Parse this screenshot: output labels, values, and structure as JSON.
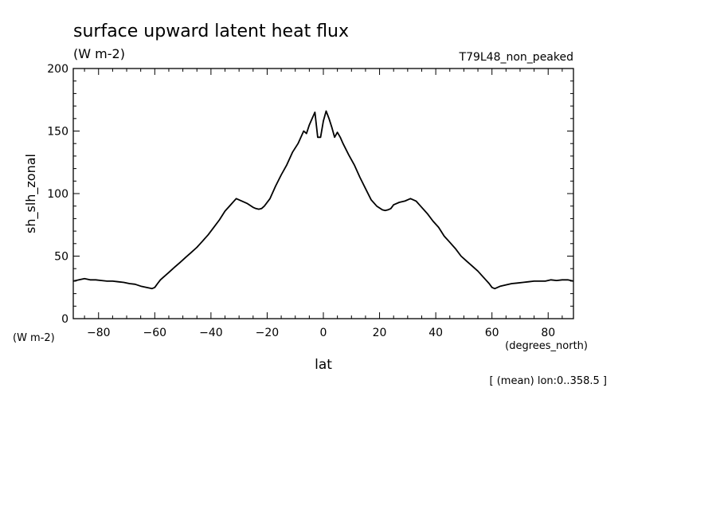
{
  "chart_data": {
    "type": "line",
    "title": "surface upward latent heat flux",
    "subtitle": "(W m-2)",
    "run_label": "T79L48_non_peaked",
    "xlabel": "lat",
    "x_units": "(degrees_north)",
    "ylabel": "sh_slh_zonal",
    "y_units": "(W m-2)",
    "footnote": "[ (mean) lon:0..358.5 ]",
    "xlim": [
      -89,
      89
    ],
    "ylim": [
      0,
      200
    ],
    "x_ticks": [
      -80,
      -60,
      -40,
      -20,
      0,
      20,
      40,
      60,
      80
    ],
    "y_ticks": [
      0,
      50,
      100,
      150,
      200
    ],
    "line_color": "#000000",
    "series": [
      {
        "x": [
          -89,
          -87,
          -85,
          -83,
          -81,
          -79,
          -77,
          -75,
          -73,
          -71,
          -69,
          -67,
          -65,
          -63,
          -61,
          -60,
          -59,
          -58,
          -57,
          -55,
          -53,
          -51,
          -49,
          -47,
          -45,
          -43,
          -41,
          -39,
          -37,
          -35,
          -33,
          -31,
          -29,
          -27,
          -25,
          -24,
          -23,
          -22,
          -21,
          -19,
          -17,
          -15,
          -13,
          -11,
          -9,
          -7,
          -6,
          -5,
          -4,
          -3,
          -2,
          -1,
          0,
          1,
          2,
          3,
          4,
          5,
          6,
          7,
          9,
          11,
          13,
          15,
          17,
          19,
          21,
          22,
          23,
          24,
          25,
          27,
          29,
          31,
          33,
          35,
          37,
          39,
          41,
          43,
          45,
          47,
          49,
          51,
          53,
          55,
          57,
          59,
          60,
          61,
          63,
          65,
          67,
          69,
          71,
          73,
          75,
          77,
          79,
          81,
          83,
          85,
          87,
          89
        ],
        "y": [
          30,
          31,
          32,
          31,
          31,
          30.5,
          30,
          30,
          29.5,
          29,
          28,
          27.5,
          26,
          25,
          24,
          25,
          28,
          31,
          33,
          37,
          41,
          45,
          49,
          53,
          57,
          62,
          67,
          73,
          79,
          86,
          91,
          96,
          94,
          92,
          89,
          88,
          87.5,
          88,
          90,
          96,
          106,
          115,
          123,
          133,
          140,
          150,
          148,
          155,
          160,
          165,
          145,
          145,
          158,
          166,
          160,
          153,
          145,
          149,
          145,
          140,
          131,
          123,
          113,
          104,
          95,
          90,
          87,
          86.5,
          87,
          88,
          91,
          93,
          94,
          96,
          94,
          89,
          84,
          78,
          73,
          66,
          61,
          56,
          50,
          46,
          42,
          38,
          33,
          28,
          25,
          24,
          26,
          27,
          28,
          28.5,
          29,
          29.5,
          30,
          30,
          30,
          31,
          30.5,
          31,
          31,
          30
        ]
      }
    ]
  }
}
